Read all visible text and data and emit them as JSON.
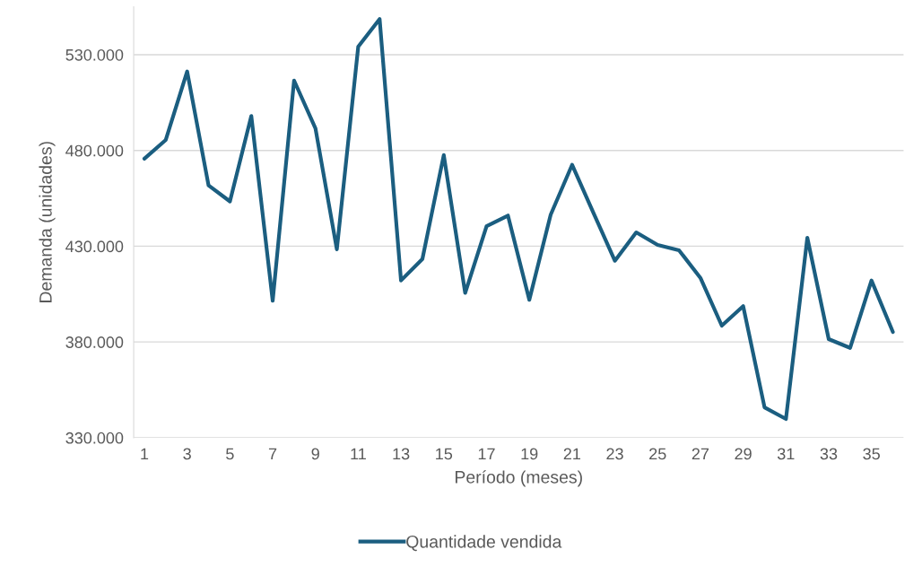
{
  "chart_data": {
    "type": "line",
    "xlabel": "Período (meses)",
    "ylabel": "Demanda (unidades)",
    "categories": [
      "1",
      null,
      "3",
      null,
      "5",
      null,
      "7",
      null,
      "9",
      null,
      "11",
      null,
      "13",
      null,
      "15",
      null,
      "17",
      null,
      "19",
      null,
      "21",
      null,
      "23",
      null,
      "25",
      null,
      "27",
      null,
      "29",
      null,
      "31",
      null,
      "33",
      null,
      "35",
      null
    ],
    "series": [
      {
        "name": "Quantidade vendida",
        "color": "#1b5e80",
        "values": [
          475700,
          485500,
          521200,
          461800,
          453400,
          498000,
          401500,
          516500,
          491500,
          428400,
          534200,
          548600,
          412100,
          423300,
          477600,
          405600,
          440400,
          446000,
          402000,
          446500,
          472500,
          447400,
          422400,
          437200,
          430700,
          427900,
          413500,
          388500,
          398700,
          345800,
          339800,
          434400,
          381500,
          376900,
          412100,
          385200
        ]
      }
    ],
    "yticks": [
      {
        "value": 330000,
        "label": "330.000"
      },
      {
        "value": 380000,
        "label": "380.000"
      },
      {
        "value": 430000,
        "label": "430.000"
      },
      {
        "value": 480000,
        "label": "480.000"
      },
      {
        "value": 530000,
        "label": "530.000"
      }
    ],
    "ylim": [
      330000,
      555000
    ],
    "grid": "y",
    "legend": "bottom",
    "marker": "none",
    "line_style": "solid"
  }
}
